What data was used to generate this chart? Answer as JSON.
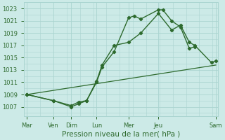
{
  "bg_color": "#cceae7",
  "grid_color": "#aad4d0",
  "line_color": "#2d6a2d",
  "figsize": [
    3.2,
    2.0
  ],
  "dpi": 100,
  "xlim": [
    0,
    8.8
  ],
  "ylim": [
    1005.5,
    1024.0
  ],
  "yticks": [
    1007,
    1009,
    1011,
    1013,
    1015,
    1017,
    1019,
    1021,
    1023
  ],
  "x_tick_pos": [
    0.15,
    1.35,
    2.15,
    3.3,
    4.75,
    6.1,
    8.7
  ],
  "x_labels": [
    "Mar",
    "Ven",
    "Dim",
    "Lun",
    "Mer",
    "Jeu",
    "Sam"
  ],
  "line1_x": [
    0.15,
    1.35,
    2.15,
    2.5,
    2.85,
    3.3,
    3.55,
    4.1,
    4.75,
    5.0,
    5.3,
    6.1,
    6.3,
    6.7,
    7.1,
    7.5,
    7.75
  ],
  "line1_y": [
    1009.0,
    1008.0,
    1007.0,
    1007.5,
    1008.0,
    1011.0,
    1013.5,
    1016.0,
    1021.5,
    1021.8,
    1021.3,
    1022.8,
    1022.8,
    1021.0,
    1020.0,
    1016.5,
    1016.8
  ],
  "line2_x": [
    0.15,
    1.35,
    2.15,
    2.5,
    2.85,
    3.3,
    3.55,
    4.1,
    4.75,
    5.3,
    6.1,
    6.7,
    7.1,
    7.5,
    7.75,
    8.5,
    8.7
  ],
  "line2_y": [
    1009.0,
    1008.0,
    1007.2,
    1007.8,
    1008.0,
    1011.2,
    1013.8,
    1017.0,
    1017.5,
    1019.0,
    1022.2,
    1019.5,
    1020.3,
    1017.5,
    1017.0,
    1014.2,
    1014.5
  ],
  "line3_x": [
    0.15,
    8.7
  ],
  "line3_y": [
    1009.0,
    1013.8
  ],
  "xlabel": "Pression niveau de la mer( hPa )",
  "xlabel_fontsize": 7.5,
  "tick_fontsize": 6.0
}
